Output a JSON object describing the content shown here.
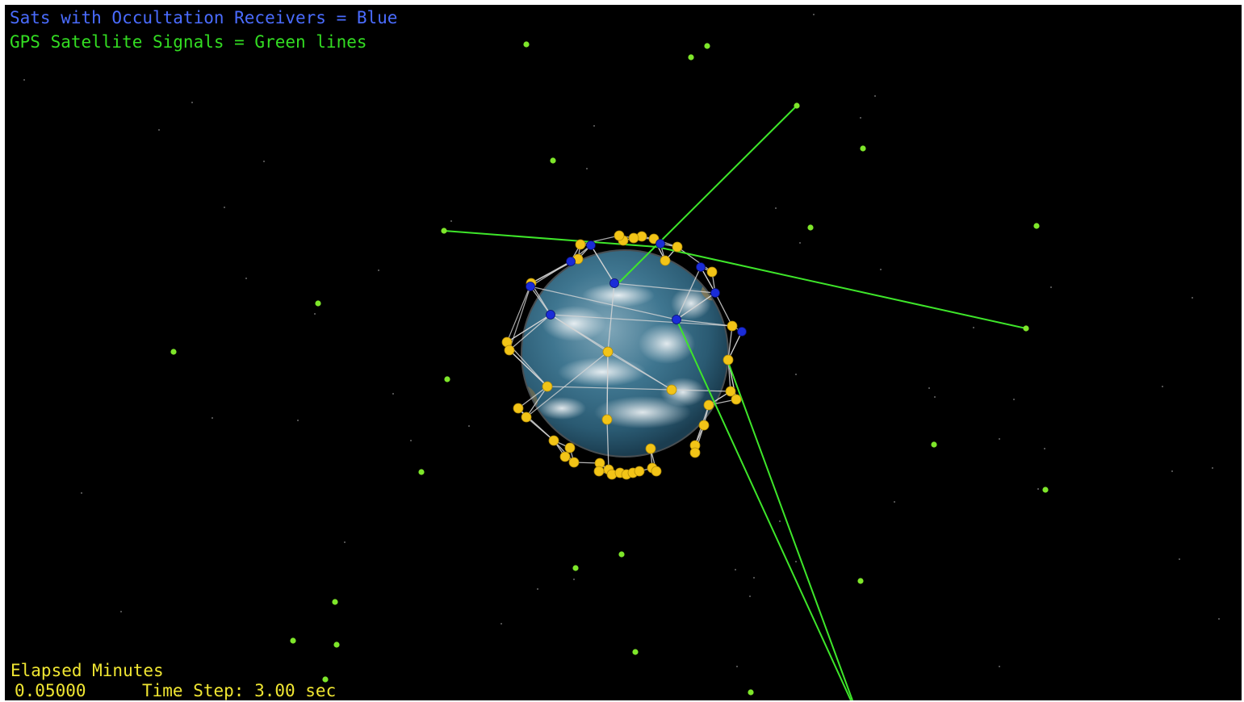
{
  "legend": {
    "occultation": "Sats with Occultation Receivers = Blue",
    "gps": "GPS Satellite Signals = Green lines"
  },
  "status": {
    "elapsed_label": "Elapsed Minutes",
    "elapsed_value": "0.05000",
    "time_step_label": "Time Step: 3.00 sec"
  },
  "colors": {
    "background": "#000000",
    "occultation_text": "#4a6cff",
    "gps_text": "#33dd22",
    "status_text": "#f0e632",
    "gps_signal": "#3ee62a",
    "gps_satellite": "#7ee62a",
    "receiver_satellite": "#1a2cd8",
    "leo_satellite": "#f2c417",
    "orbit_mesh": "#d6d6d6",
    "ocean": "#2f6f8f"
  }
}
